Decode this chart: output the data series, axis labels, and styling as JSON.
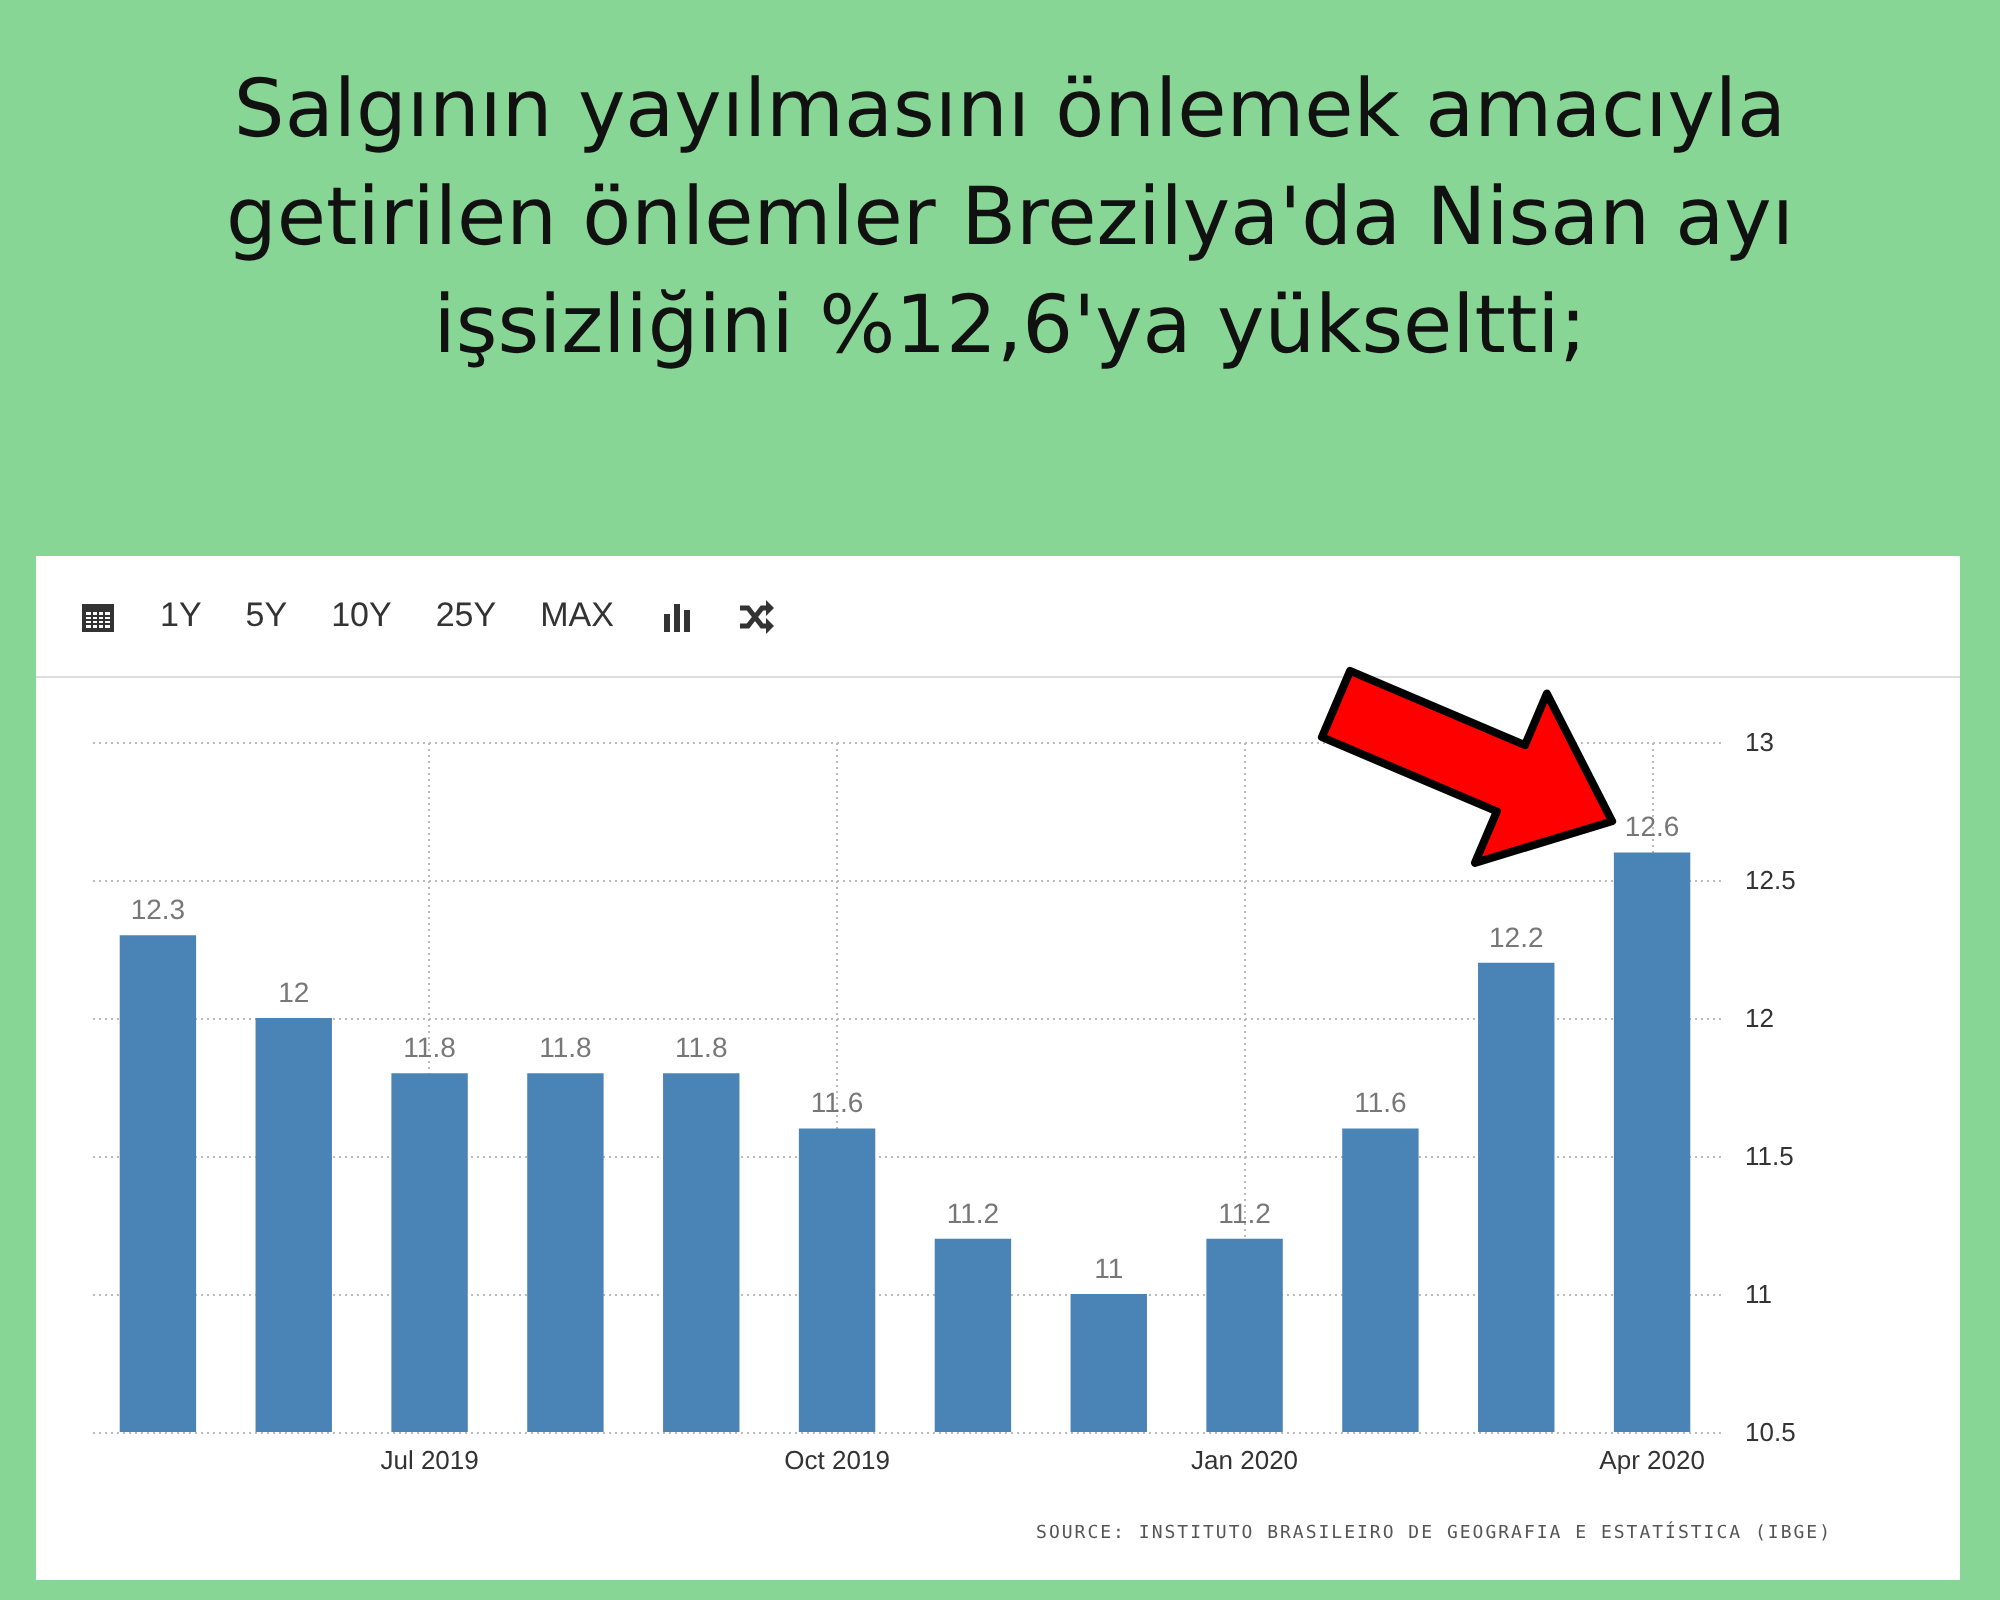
{
  "chart_data": {
    "type": "bar",
    "title": "Salgının yayılmasını önlemek amacıyla getirilen önlemler Brezilya'da Nisan ayı işsizliğini %12,6'ya yükseltti;",
    "categories": [
      null,
      null,
      "Jul 2019",
      null,
      null,
      "Oct 2019",
      null,
      null,
      "Jan 2020",
      null,
      null,
      "Apr 2020"
    ],
    "values": [
      12.3,
      12,
      11.8,
      11.8,
      11.8,
      11.6,
      11.2,
      11,
      11.2,
      11.6,
      12.2,
      12.6
    ],
    "color": "#4a84b6",
    "ylim": [
      10.5,
      13
    ],
    "yticks": [
      10.5,
      11,
      11.5,
      12,
      12.5,
      13
    ],
    "grid": true,
    "data_labels": true,
    "annotations": [
      "1Y",
      "5Y",
      "10Y",
      "25Y",
      "MAX",
      "SOURCE: INSTITUTO BRASILEIRO DE GEOGRAFIA E ESTATÍSTICA (IBGE)"
    ]
  }
}
